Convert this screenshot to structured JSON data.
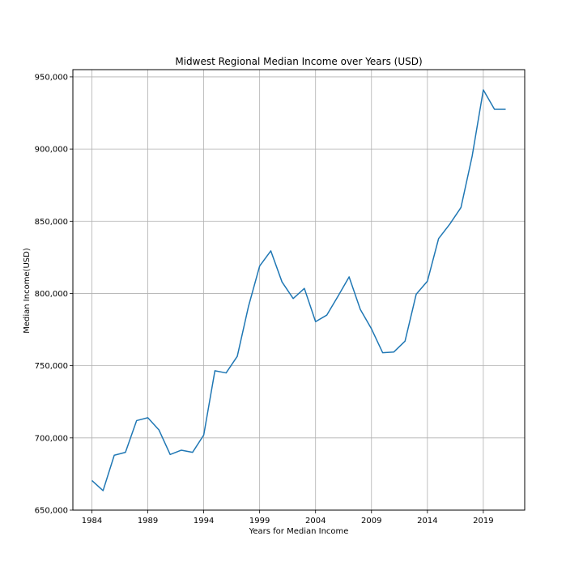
{
  "chart_data": {
    "type": "line",
    "title": "Midwest Regional Median Income over Years (USD)",
    "xlabel": "Years for Median Income",
    "ylabel": "Median Income(USD)",
    "xlim": [
      1982.3,
      2022.7
    ],
    "ylim": [
      650000,
      955000
    ],
    "xticks": [
      1984,
      1989,
      1994,
      1999,
      2004,
      2009,
      2014,
      2019
    ],
    "yticks": [
      650000,
      700000,
      750000,
      800000,
      850000,
      900000,
      950000
    ],
    "ytick_labels": [
      "650,000",
      "700,000",
      "750,000",
      "800,000",
      "850,000",
      "900,000",
      "950,000"
    ],
    "grid": true,
    "line_color": "#1f77b4",
    "series": [
      {
        "x": [
          1984,
          1985,
          1986,
          1987,
          1988,
          1989,
          1990,
          1991,
          1992,
          1993,
          1994,
          1995,
          1996,
          1997,
          1998,
          1999,
          2000,
          2001,
          2002,
          2003,
          2004,
          2005,
          2006,
          2007,
          2008,
          2009,
          2010,
          2011,
          2012,
          2013,
          2014,
          2015,
          2016,
          2017,
          2018,
          2019,
          2020,
          2021
        ],
        "values": [
          670500,
          663500,
          688000,
          690000,
          712000,
          714000,
          705500,
          688500,
          691500,
          690000,
          702000,
          746500,
          745000,
          756500,
          791000,
          819000,
          829500,
          808000,
          796500,
          803500,
          780500,
          785000,
          798000,
          811500,
          789000,
          775500,
          759000,
          759500,
          767000,
          799500,
          808500,
          838000,
          848000,
          859500,
          895000,
          941000,
          927500,
          927500
        ]
      }
    ]
  }
}
